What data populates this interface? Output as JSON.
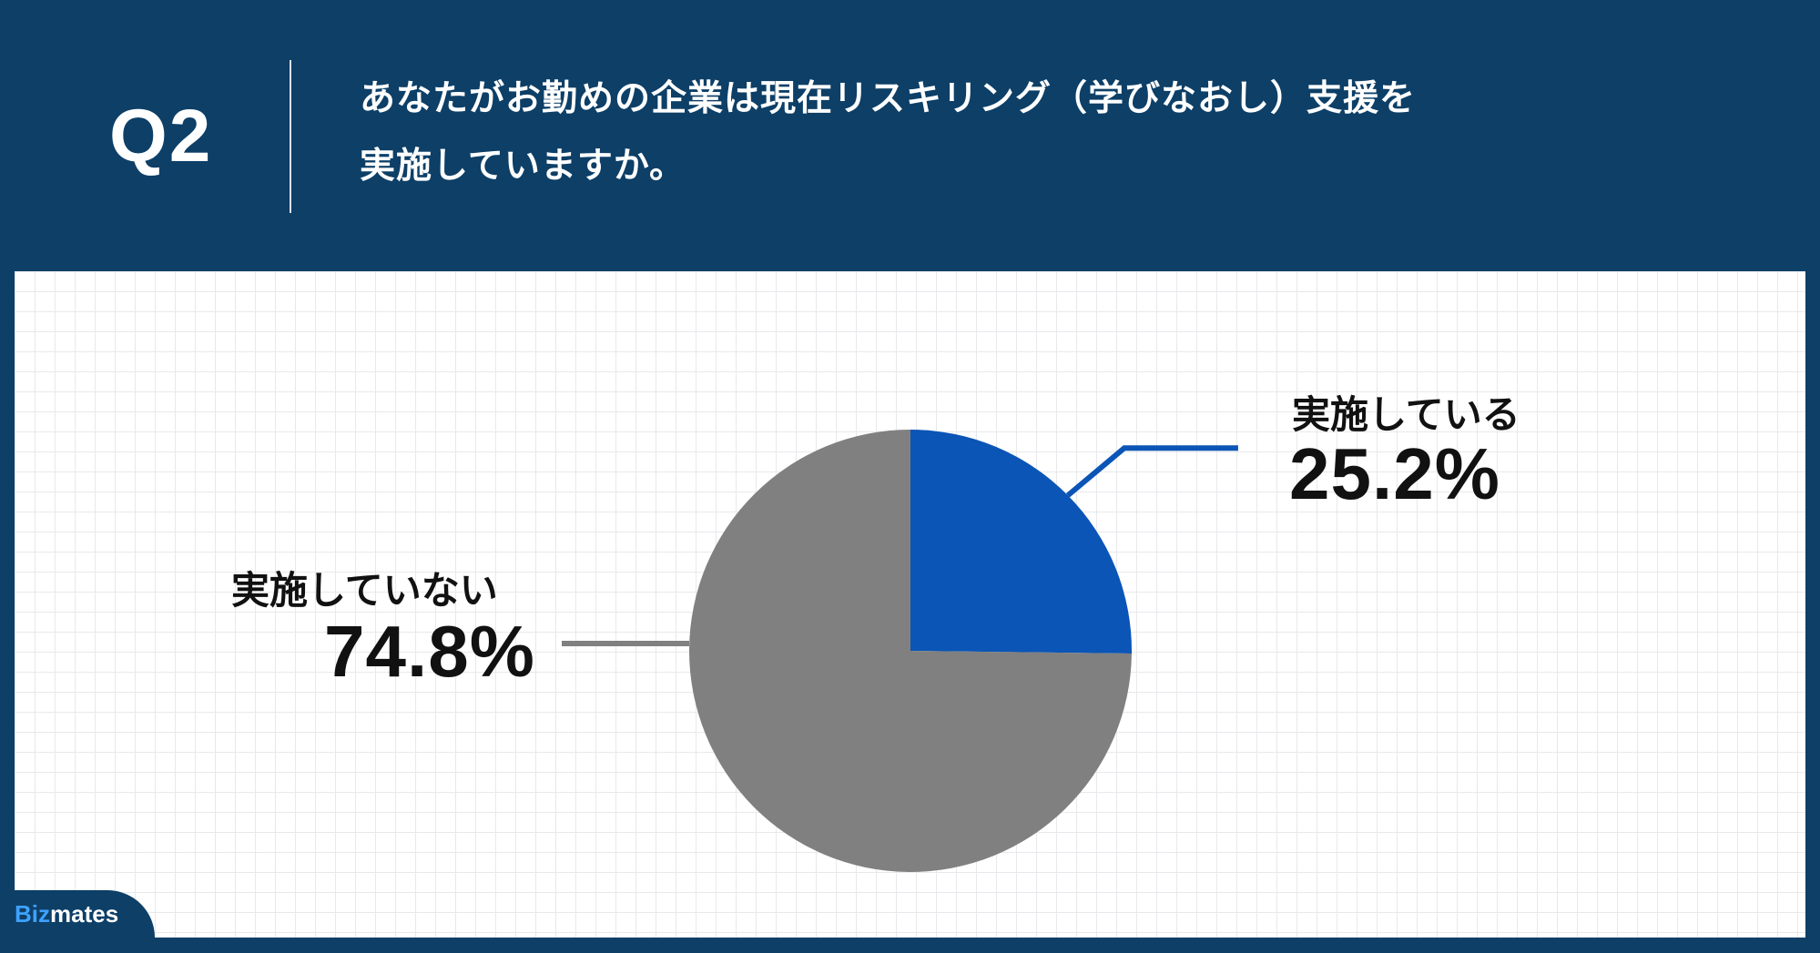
{
  "header": {
    "question_number": "Q2",
    "question_line1": "あなたがお勤めの企業は現在リスキリング（学びなおし）支援を",
    "question_line2": "実施していますか。"
  },
  "chart_data": {
    "type": "pie",
    "title": "",
    "slices": [
      {
        "label": "実施している",
        "value": 25.2,
        "display": "25.2%",
        "color": "#0b55b6"
      },
      {
        "label": "実施していない",
        "value": 74.8,
        "display": "74.8%",
        "color": "#808080"
      }
    ]
  },
  "branding": {
    "logo_part1": "Biz",
    "logo_part2": "mates"
  },
  "colors": {
    "header_bg": "#0d3f67",
    "accent_blue": "#0b55b6",
    "gray_slice": "#808080"
  }
}
